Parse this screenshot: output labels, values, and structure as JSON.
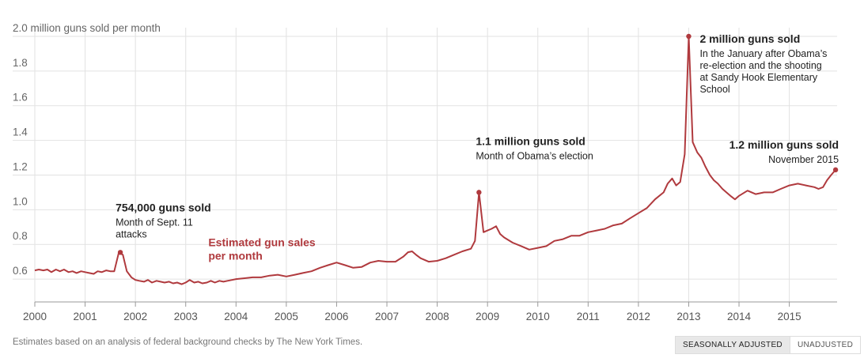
{
  "chart_data": {
    "type": "line",
    "title": "",
    "ylabel": "2.0 million guns sold per month",
    "xlabel": "",
    "ylim": [
      0.5,
      2.05
    ],
    "y_ticks": [
      0.6,
      0.8,
      1.0,
      1.2,
      1.4,
      1.6,
      1.8,
      2.0
    ],
    "y_tick_labels": [
      "0.6",
      "0.8",
      "1.0",
      "1.2",
      "1.4",
      "1.6",
      "1.8",
      "2.0 million guns sold per month"
    ],
    "xlim": [
      2000.0,
      2015.95
    ],
    "x_ticks": [
      2000,
      2001,
      2002,
      2003,
      2004,
      2005,
      2006,
      2007,
      2008,
      2009,
      2010,
      2011,
      2012,
      2013,
      2014,
      2015
    ],
    "x_tick_labels": [
      "2000",
      "2001",
      "2002",
      "2003",
      "2004",
      "2005",
      "2006",
      "2007",
      "2008",
      "2009",
      "2010",
      "2011",
      "2012",
      "2013",
      "2014",
      "2015"
    ],
    "series": [
      {
        "name": "Estimated gun sales per month",
        "name_lines": [
          "Estimated gun sales",
          "per month"
        ],
        "color": "#b03a3e",
        "x": [
          2000.0,
          2000.08,
          2000.17,
          2000.25,
          2000.33,
          2000.42,
          2000.5,
          2000.58,
          2000.67,
          2000.75,
          2000.83,
          2000.92,
          2001.0,
          2001.08,
          2001.17,
          2001.25,
          2001.33,
          2001.42,
          2001.5,
          2001.58,
          2001.67,
          2001.75,
          2001.83,
          2001.92,
          2002.0,
          2002.08,
          2002.17,
          2002.25,
          2002.33,
          2002.42,
          2002.5,
          2002.58,
          2002.67,
          2002.75,
          2002.83,
          2002.92,
          2003.0,
          2003.08,
          2003.17,
          2003.25,
          2003.33,
          2003.42,
          2003.5,
          2003.58,
          2003.67,
          2003.75,
          2003.83,
          2003.92,
          2004.0,
          2004.17,
          2004.33,
          2004.5,
          2004.67,
          2004.83,
          2005.0,
          2005.17,
          2005.33,
          2005.5,
          2005.67,
          2005.83,
          2006.0,
          2006.17,
          2006.33,
          2006.5,
          2006.67,
          2006.83,
          2007.0,
          2007.17,
          2007.33,
          2007.42,
          2007.5,
          2007.58,
          2007.67,
          2007.83,
          2008.0,
          2008.17,
          2008.33,
          2008.5,
          2008.67,
          2008.75,
          2008.83,
          2008.92,
          2009.0,
          2009.08,
          2009.17,
          2009.25,
          2009.33,
          2009.5,
          2009.67,
          2009.83,
          2010.0,
          2010.17,
          2010.33,
          2010.5,
          2010.67,
          2010.83,
          2011.0,
          2011.17,
          2011.33,
          2011.5,
          2011.67,
          2011.83,
          2012.0,
          2012.17,
          2012.33,
          2012.5,
          2012.58,
          2012.67,
          2012.75,
          2012.83,
          2012.92,
          2013.0,
          2013.08,
          2013.17,
          2013.25,
          2013.33,
          2013.42,
          2013.5,
          2013.58,
          2013.67,
          2013.75,
          2013.83,
          2013.92,
          2014.0,
          2014.17,
          2014.33,
          2014.5,
          2014.67,
          2014.83,
          2015.0,
          2015.17,
          2015.33,
          2015.5,
          2015.58,
          2015.67,
          2015.75,
          2015.83,
          2015.92
        ],
        "values": [
          0.65,
          0.655,
          0.65,
          0.655,
          0.64,
          0.655,
          0.645,
          0.655,
          0.64,
          0.645,
          0.635,
          0.645,
          0.64,
          0.635,
          0.63,
          0.645,
          0.64,
          0.65,
          0.645,
          0.645,
          0.754,
          0.74,
          0.645,
          0.61,
          0.595,
          0.59,
          0.585,
          0.595,
          0.58,
          0.59,
          0.585,
          0.58,
          0.585,
          0.575,
          0.58,
          0.57,
          0.58,
          0.595,
          0.58,
          0.585,
          0.575,
          0.58,
          0.59,
          0.58,
          0.59,
          0.585,
          0.59,
          0.595,
          0.6,
          0.605,
          0.61,
          0.61,
          0.62,
          0.625,
          0.615,
          0.625,
          0.635,
          0.645,
          0.665,
          0.68,
          0.695,
          0.68,
          0.665,
          0.67,
          0.695,
          0.705,
          0.7,
          0.7,
          0.73,
          0.755,
          0.76,
          0.74,
          0.72,
          0.7,
          0.705,
          0.72,
          0.74,
          0.76,
          0.775,
          0.82,
          1.1,
          0.87,
          0.88,
          0.89,
          0.905,
          0.86,
          0.84,
          0.81,
          0.79,
          0.77,
          0.78,
          0.79,
          0.82,
          0.83,
          0.85,
          0.85,
          0.87,
          0.88,
          0.89,
          0.91,
          0.92,
          0.95,
          0.98,
          1.01,
          1.06,
          1.1,
          1.15,
          1.18,
          1.14,
          1.16,
          1.32,
          2.0,
          1.39,
          1.33,
          1.3,
          1.25,
          1.2,
          1.17,
          1.15,
          1.12,
          1.1,
          1.08,
          1.06,
          1.08,
          1.11,
          1.09,
          1.1,
          1.1,
          1.12,
          1.14,
          1.15,
          1.14,
          1.13,
          1.12,
          1.13,
          1.17,
          1.2,
          1.23
        ]
      }
    ],
    "annotations": [
      {
        "x": 2001.7,
        "y": 0.754,
        "title": "754,000 guns sold",
        "lines": [
          "Month of Sept. 11",
          "attacks"
        ],
        "align": "start"
      },
      {
        "x": 2008.83,
        "y": 1.1,
        "title": "1.1 million guns sold",
        "lines": [
          "Month of Obama’s election"
        ],
        "align": "start"
      },
      {
        "x": 2013.0,
        "y": 2.0,
        "title": "2 million guns sold",
        "lines": [
          "In the January after Obama’s",
          "re-election and the shooting",
          "at Sandy Hook Elementary",
          "School"
        ],
        "align": "start"
      },
      {
        "x": 2015.92,
        "y": 1.23,
        "title": "1.2 million guns sold",
        "lines": [
          "November 2015"
        ],
        "align": "end"
      }
    ]
  },
  "footer": {
    "source": "Estimates based on an analysis of federal background checks by The New York Times.",
    "toggle_seasonal": "SEASONALLY ADJUSTED",
    "toggle_unadjusted": "UNADJUSTED"
  }
}
